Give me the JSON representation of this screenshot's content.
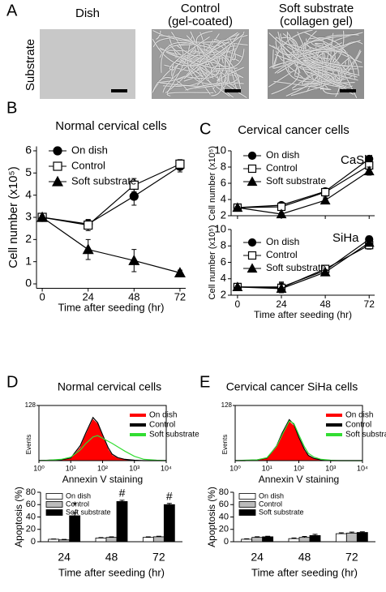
{
  "panel_labels": [
    "A",
    "B",
    "C",
    "D",
    "E"
  ],
  "substrate_panel": {
    "row_label": "Substrate",
    "columns": [
      [
        "Dish"
      ],
      [
        "Control",
        "(gel-coated)"
      ],
      [
        "Soft substrate",
        "(collagen gel)"
      ]
    ]
  },
  "chart_data": [
    {
      "type": "line",
      "title": "Normal cervical cells",
      "x_label": "Time after seeding (hr)",
      "y_label": "Cell number (x10⁵)",
      "x": [
        0,
        24,
        48,
        72
      ],
      "xlim": [
        -3,
        75
      ],
      "xticks": [
        0,
        24,
        48,
        72
      ],
      "ylim": [
        -0.2,
        6.2
      ],
      "yticks": [
        0,
        1,
        2,
        3,
        4,
        5,
        6
      ],
      "series": [
        {
          "name": "On dish",
          "color": "#000000",
          "marker": "circle",
          "filled": true,
          "values": [
            3.0,
            2.7,
            3.95,
            5.3
          ],
          "errors": [
            0.08,
            0.2,
            0.4,
            0.25
          ]
        },
        {
          "name": "Control",
          "color": "#000000",
          "marker": "square",
          "filled": false,
          "values": [
            3.0,
            2.65,
            4.45,
            5.4
          ],
          "errors": [
            0.08,
            0.25,
            0.3,
            0.2
          ]
        },
        {
          "name": "Soft substrate",
          "color": "#000000",
          "marker": "triangle",
          "filled": true,
          "values": [
            3.0,
            1.55,
            1.05,
            0.5
          ],
          "errors": [
            0.08,
            0.45,
            0.5,
            0.12
          ]
        }
      ]
    },
    {
      "type": "line",
      "title": "Cervical cancer cells",
      "annotation": "CaSki",
      "y_label": "Cell number (x10⁵)",
      "x": [
        0,
        24,
        48,
        72
      ],
      "xlim": [
        -3.5,
        75
      ],
      "xticks": [
        0,
        24,
        48,
        72
      ],
      "ylim": [
        2,
        10
      ],
      "yticks": [
        2,
        4,
        6,
        8,
        10
      ],
      "series": [
        {
          "name": "On dish",
          "color": "#000000",
          "marker": "circle",
          "filled": true,
          "values": [
            3.0,
            3.3,
            5.0,
            9.0
          ],
          "errors": [
            0.15,
            0.3,
            0.4,
            0.3
          ]
        },
        {
          "name": "Control",
          "color": "#000000",
          "marker": "square",
          "filled": false,
          "values": [
            3.0,
            3.1,
            4.9,
            8.2
          ],
          "errors": [
            0.15,
            0.3,
            0.5,
            0.5
          ]
        },
        {
          "name": "Soft substrate",
          "color": "#000000",
          "marker": "triangle",
          "filled": true,
          "values": [
            3.0,
            2.2,
            3.9,
            7.5
          ],
          "errors": [
            0.15,
            0.2,
            0.3,
            0.5
          ]
        }
      ]
    },
    {
      "type": "line",
      "annotation": "SiHa",
      "x_label": "Time after seeding (hr)",
      "y_label": "Cell number (x10⁵)",
      "x": [
        0,
        24,
        48,
        72
      ],
      "xlim": [
        -3.5,
        75
      ],
      "xticks": [
        0,
        24,
        48,
        72
      ],
      "ylim": [
        2,
        10
      ],
      "yticks": [
        2,
        4,
        6,
        8,
        10
      ],
      "series": [
        {
          "name": "On dish",
          "color": "#000000",
          "marker": "circle",
          "filled": true,
          "values": [
            3.0,
            3.0,
            5.0,
            8.8
          ],
          "errors": [
            0.15,
            0.6,
            0.3,
            0.4
          ]
        },
        {
          "name": "Control",
          "color": "#000000",
          "marker": "square",
          "filled": false,
          "values": [
            3.0,
            2.9,
            5.2,
            8.1
          ],
          "errors": [
            0.15,
            0.6,
            0.4,
            0.5
          ]
        },
        {
          "name": "Soft substrate",
          "color": "#000000",
          "marker": "triangle",
          "filled": true,
          "values": [
            3.0,
            2.8,
            4.8,
            8.4
          ],
          "errors": [
            0.15,
            0.5,
            0.3,
            0.4
          ]
        }
      ]
    },
    {
      "type": "area",
      "title": "Normal cervical cells",
      "x_label": "Annexin V staining",
      "y_label": "Events",
      "xscale": "log",
      "x": [
        1,
        2,
        5,
        10,
        20,
        30,
        50,
        70,
        100,
        150,
        200,
        300,
        500,
        1000,
        2000,
        5000,
        10000
      ],
      "xlim": [
        1,
        10000
      ],
      "xticks": [
        {
          "value": 1,
          "label": "10⁰"
        },
        {
          "value": 10,
          "label": "10¹"
        },
        {
          "value": 100,
          "label": "10²"
        },
        {
          "value": 1000,
          "label": "10³"
        },
        {
          "value": 10000,
          "label": "10⁴"
        }
      ],
      "ylim": [
        0,
        128
      ],
      "yticks": [
        128
      ],
      "series": [
        {
          "name": "On dish",
          "color": "#ff0000",
          "fill": true,
          "values": [
            0,
            0,
            1,
            4,
            30,
            60,
            95,
            85,
            55,
            25,
            12,
            5,
            2,
            0,
            0,
            0,
            0
          ]
        },
        {
          "name": "Control",
          "color": "#000000",
          "fill": false,
          "values": [
            0,
            1,
            2,
            6,
            35,
            65,
            100,
            88,
            60,
            30,
            15,
            7,
            3,
            1,
            0,
            0,
            0
          ]
        },
        {
          "name": "Soft substrate",
          "color": "#33dd33",
          "fill": false,
          "values": [
            0,
            1,
            3,
            8,
            25,
            40,
            55,
            58,
            52,
            45,
            40,
            32,
            22,
            10,
            3,
            1,
            0
          ]
        }
      ]
    },
    {
      "type": "bar",
      "x_label": "Time after seeding (hr)",
      "y_label": "Apoptosis (%)",
      "categories": [
        "24",
        "48",
        "72"
      ],
      "ylim": [
        0,
        80
      ],
      "yticks": [
        0,
        20,
        40,
        60,
        80
      ],
      "series": [
        {
          "name": "On dish",
          "color": "#ffffff",
          "values": [
            4,
            6,
            7
          ],
          "errors": [
            0.5,
            0.8,
            0.8
          ]
        },
        {
          "name": "Control",
          "color": "#bbbbbb",
          "values": [
            3,
            7,
            8
          ],
          "errors": [
            0.8,
            0.8,
            0.8
          ]
        },
        {
          "name": "Soft substrate",
          "color": "#000000",
          "values": [
            42,
            65,
            60
          ],
          "errors": [
            5,
            2,
            2
          ],
          "significance": [
            "*",
            "#",
            "#"
          ]
        }
      ]
    },
    {
      "type": "area",
      "title": "Cervical cancer SiHa cells",
      "x_label": "Annexin V staining",
      "y_label": "Events",
      "xscale": "log",
      "x": [
        1,
        2,
        5,
        10,
        20,
        30,
        50,
        70,
        100,
        150,
        200,
        300,
        500,
        1000,
        2000,
        5000,
        10000
      ],
      "xlim": [
        1,
        10000
      ],
      "xticks": [
        {
          "value": 1,
          "label": "10⁰"
        },
        {
          "value": 10,
          "label": "10¹"
        },
        {
          "value": 100,
          "label": "10²"
        },
        {
          "value": 1000,
          "label": "10³"
        },
        {
          "value": 10000,
          "label": "10⁴"
        }
      ],
      "ylim": [
        0,
        128
      ],
      "yticks": [
        128
      ],
      "series": [
        {
          "name": "On dish",
          "color": "#ff0000",
          "fill": true,
          "values": [
            0,
            0,
            1,
            5,
            32,
            62,
            90,
            80,
            50,
            22,
            10,
            4,
            1,
            0,
            0,
            0,
            0
          ]
        },
        {
          "name": "Control",
          "color": "#000000",
          "fill": false,
          "values": [
            0,
            0,
            2,
            6,
            34,
            64,
            95,
            84,
            54,
            26,
            12,
            5,
            2,
            0,
            0,
            0,
            0
          ]
        },
        {
          "name": "Soft substrate",
          "color": "#33dd33",
          "fill": false,
          "values": [
            0,
            1,
            2,
            7,
            33,
            60,
            92,
            86,
            60,
            32,
            17,
            8,
            3,
            1,
            0,
            0,
            0
          ]
        }
      ]
    },
    {
      "type": "bar",
      "x_label": "Time after seeding (hr)",
      "y_label": "Apoptosis (%)",
      "categories": [
        "24",
        "48",
        "72"
      ],
      "ylim": [
        0,
        80
      ],
      "yticks": [
        0,
        20,
        40,
        60,
        80
      ],
      "series": [
        {
          "name": "On dish",
          "color": "#ffffff",
          "values": [
            4,
            5,
            13
          ],
          "errors": [
            0.8,
            1,
            1.5
          ]
        },
        {
          "name": "Control",
          "color": "#bbbbbb",
          "values": [
            7,
            7,
            14
          ],
          "errors": [
            1,
            1.5,
            1.5
          ]
        },
        {
          "name": "Soft substrate",
          "color": "#000000",
          "values": [
            8,
            10,
            15
          ],
          "errors": [
            0.8,
            2,
            1
          ]
        }
      ]
    }
  ]
}
